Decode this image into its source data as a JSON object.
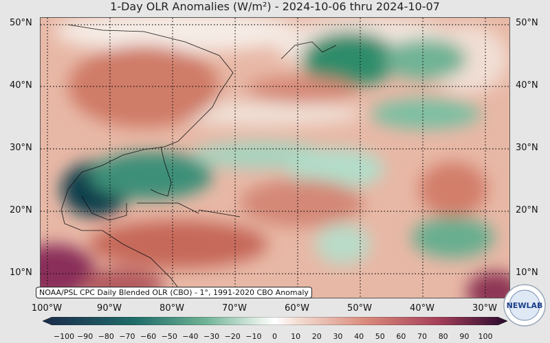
{
  "title": "1-Day OLR Anomalies (W/m²) - 2024-10-06 thru 2024-10-07",
  "lat_labels": [
    "50°N",
    "40°N",
    "30°N",
    "20°N",
    "10°N"
  ],
  "lon_labels": [
    "100°W",
    "90°W",
    "80°W",
    "70°W",
    "60°W",
    "50°W",
    "40°W",
    "30°W"
  ],
  "source_note": "NOAA/PSL CPC Daily Blended OLR (CBO) - 1°, 1991-2020 CBO Anomaly",
  "colorbar": {
    "ticks": [
      "−100",
      "−90",
      "−80",
      "−70",
      "−60",
      "−50",
      "−40",
      "−30",
      "−20",
      "−10",
      "0",
      "10",
      "20",
      "30",
      "40",
      "50",
      "60",
      "70",
      "80",
      "90",
      "100"
    ],
    "negative_color": "#1b2a4a",
    "mid_color": "#ffffff",
    "positive_color": "#2a0a2e"
  },
  "logo_text": "NEWLAB"
}
